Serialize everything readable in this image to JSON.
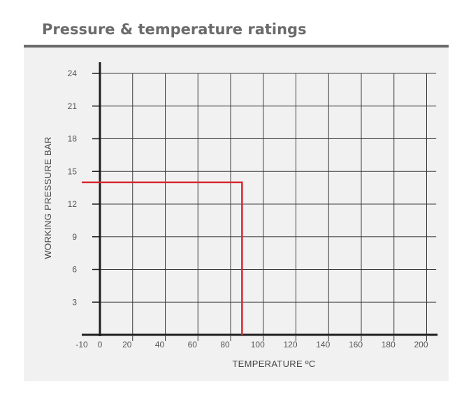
{
  "page": {
    "title": "Pressure & temperature ratings"
  },
  "chart_data": {
    "type": "line",
    "xlabel": "TEMPERATURE ºC",
    "ylabel": "WORKING PRESSURE BAR",
    "xlim": [
      -10,
      205
    ],
    "ylim": [
      0,
      24
    ],
    "x_ticks": [
      -10,
      0,
      20,
      40,
      60,
      80,
      100,
      120,
      140,
      160,
      180,
      200
    ],
    "y_ticks": [
      3,
      6,
      9,
      12,
      15,
      18,
      21,
      24
    ],
    "grid": true,
    "series": [
      {
        "color": "#d7282f",
        "x": [
          -10,
          87,
          87
        ],
        "y": [
          14,
          14,
          0
        ]
      }
    ]
  }
}
